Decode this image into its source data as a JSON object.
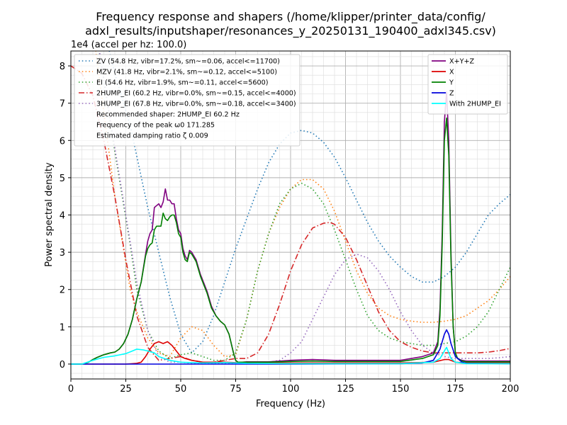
{
  "chart_data": {
    "type": "line",
    "title_line1": "Frequency response and shapers (/home/klipper/printer_data/config/",
    "title_line2": "adxl_results/inputshaper/resonances_y_20250131_190400_adxl345.csv)",
    "xlabel": "Frequency (Hz)",
    "ylabel": "Power spectral density",
    "y_offset_label": "1e4 (accel per hz: 100.0)",
    "xlim": [
      0,
      200
    ],
    "ylim": [
      -0.4,
      8.4
    ],
    "x_ticks": [
      0,
      25,
      50,
      75,
      100,
      125,
      150,
      175,
      200
    ],
    "y_ticks": [
      0,
      1,
      2,
      3,
      4,
      5,
      6,
      7,
      8
    ],
    "grid": true,
    "series": [
      {
        "name": "X+Y+Z",
        "color": "#800080",
        "x": [
          0,
          5,
          8,
          10,
          12,
          15,
          18,
          20,
          22,
          24,
          26,
          28,
          30,
          32,
          34,
          35,
          36,
          37,
          38,
          39,
          40,
          41,
          42,
          43,
          44,
          45,
          46,
          47,
          48,
          49,
          50,
          51,
          52,
          53,
          54,
          55,
          56,
          57,
          58,
          59,
          60,
          62,
          64,
          66,
          68,
          70,
          72,
          74,
          75,
          76,
          77,
          78,
          80,
          90,
          100,
          110,
          120,
          130,
          140,
          150,
          160,
          165,
          167,
          168,
          169,
          170,
          171,
          172,
          173,
          174,
          175,
          176,
          178,
          180,
          190,
          200
        ],
        "y": [
          0,
          0,
          0.05,
          0.12,
          0.18,
          0.25,
          0.3,
          0.32,
          0.4,
          0.55,
          0.8,
          1.2,
          1.75,
          2.2,
          2.95,
          3.3,
          3.5,
          3.6,
          4.2,
          4.25,
          4.3,
          4.2,
          4.35,
          4.7,
          4.4,
          4.4,
          4.3,
          4.3,
          3.9,
          3.6,
          3.5,
          3.1,
          2.9,
          2.8,
          3.05,
          3.0,
          2.9,
          2.8,
          2.6,
          2.4,
          2.25,
          1.95,
          1.55,
          1.3,
          1.15,
          1.05,
          0.8,
          0.3,
          0.1,
          0.05,
          0.05,
          0.05,
          0.06,
          0.06,
          0.1,
          0.12,
          0.1,
          0.1,
          0.1,
          0.1,
          0.2,
          0.3,
          0.6,
          1.5,
          3.5,
          6.5,
          7.3,
          6.0,
          3.0,
          1.0,
          0.3,
          0.15,
          0.1,
          0.08,
          0.08,
          0.08
        ]
      },
      {
        "name": "X",
        "color": "#dd0000",
        "x": [
          0,
          25,
          28,
          30,
          32,
          34,
          36,
          38,
          40,
          42,
          44,
          46,
          48,
          50,
          52,
          55,
          60,
          65,
          70,
          75,
          80,
          100,
          150,
          165,
          170,
          172,
          175,
          180,
          200
        ],
        "y": [
          0,
          0,
          0.01,
          0.02,
          0.05,
          0.2,
          0.4,
          0.55,
          0.6,
          0.55,
          0.6,
          0.5,
          0.35,
          0.2,
          0.15,
          0.1,
          0.05,
          0.05,
          0.05,
          0.04,
          0.03,
          0.03,
          0.03,
          0.05,
          0.12,
          0.12,
          0.05,
          0.03,
          0.03
        ]
      },
      {
        "name": "Y",
        "color": "#008000",
        "x": [
          0,
          5,
          8,
          10,
          12,
          15,
          18,
          20,
          22,
          24,
          26,
          28,
          30,
          32,
          34,
          35,
          36,
          37,
          38,
          39,
          40,
          41,
          42,
          43,
          44,
          45,
          46,
          47,
          48,
          49,
          50,
          51,
          52,
          53,
          54,
          55,
          56,
          57,
          58,
          59,
          60,
          62,
          64,
          66,
          68,
          70,
          72,
          74,
          75,
          76,
          77,
          78,
          80,
          90,
          100,
          110,
          120,
          130,
          140,
          150,
          160,
          165,
          167,
          168,
          169,
          170,
          171,
          172,
          173,
          174,
          175,
          176,
          178,
          180,
          190,
          200
        ],
        "y": [
          0,
          0,
          0.05,
          0.12,
          0.18,
          0.25,
          0.3,
          0.32,
          0.4,
          0.55,
          0.8,
          1.2,
          1.75,
          2.2,
          2.9,
          3.1,
          3.2,
          3.25,
          3.6,
          3.7,
          3.7,
          3.7,
          4.05,
          3.9,
          3.85,
          3.95,
          4.0,
          4.0,
          3.8,
          3.5,
          3.4,
          3.0,
          2.8,
          2.75,
          3.0,
          2.95,
          2.85,
          2.75,
          2.55,
          2.35,
          2.2,
          1.9,
          1.5,
          1.3,
          1.15,
          1.05,
          0.8,
          0.3,
          0.1,
          0.05,
          0.05,
          0.05,
          0.05,
          0.05,
          0.07,
          0.08,
          0.07,
          0.07,
          0.07,
          0.07,
          0.15,
          0.25,
          0.5,
          1.3,
          3.2,
          6.0,
          6.6,
          5.6,
          2.8,
          1.0,
          0.3,
          0.15,
          0.08,
          0.06,
          0.06,
          0.06
        ]
      },
      {
        "name": "Z",
        "color": "#0000dd",
        "x": [
          0,
          100,
          150,
          160,
          165,
          168,
          170,
          171,
          172,
          173,
          175,
          178,
          180,
          200
        ],
        "y": [
          0,
          0,
          0.01,
          0.03,
          0.1,
          0.4,
          0.8,
          0.92,
          0.8,
          0.55,
          0.2,
          0.05,
          0.02,
          0.01
        ]
      },
      {
        "name": "With 2HUMP_EI",
        "color": "#00ffff",
        "x": [
          0,
          5,
          10,
          15,
          20,
          25,
          28,
          30,
          33,
          35,
          38,
          40,
          45,
          50,
          55,
          60,
          70,
          80,
          100,
          150,
          165,
          168,
          170,
          171,
          172,
          173,
          175,
          180,
          200
        ],
        "y": [
          0,
          0,
          0.1,
          0.18,
          0.22,
          0.28,
          0.35,
          0.4,
          0.38,
          0.35,
          0.3,
          0.2,
          0.1,
          0.05,
          0.04,
          0.03,
          0.04,
          0.02,
          0.01,
          0.01,
          0.05,
          0.15,
          0.35,
          0.45,
          0.3,
          0.15,
          0.05,
          0.01,
          0.01
        ]
      }
    ],
    "shapers": [
      {
        "name": "ZV (54.8 Hz, vibr=17.2%, sm~=0.06, accel<=11700)",
        "color": "#1f77b4",
        "dash": "dotted",
        "x": [
          0,
          10,
          20,
          27,
          35,
          40,
          45,
          50,
          55,
          60,
          65,
          70,
          75,
          80,
          85,
          90,
          95,
          100,
          105,
          110,
          115,
          120,
          125,
          130,
          135,
          140,
          145,
          150,
          155,
          160,
          165,
          170,
          175,
          180,
          185,
          190,
          195,
          200
        ],
        "y": [
          12,
          10.2,
          7.8,
          6.4,
          4.2,
          3.0,
          1.8,
          0.8,
          0.3,
          0.6,
          1.3,
          2.2,
          3.1,
          3.9,
          4.7,
          5.4,
          5.9,
          6.2,
          6.27,
          6.2,
          5.95,
          5.55,
          5.0,
          4.4,
          3.8,
          3.3,
          2.9,
          2.6,
          2.35,
          2.2,
          2.2,
          2.35,
          2.6,
          3.0,
          3.5,
          4.0,
          4.3,
          4.55
        ]
      },
      {
        "name": "MZV (41.8 Hz, vibr=2.1%, sm~=0.12, accel<=5100)",
        "color": "#ff7f0e",
        "dash": "dotted",
        "x": [
          0,
          10,
          20,
          27,
          30,
          35,
          40,
          45,
          50,
          55,
          60,
          65,
          70,
          75,
          80,
          85,
          90,
          95,
          100,
          105,
          110,
          115,
          120,
          125,
          130,
          135,
          140,
          145,
          150,
          155,
          160,
          165,
          170,
          175,
          180,
          185,
          190,
          195,
          200
        ],
        "y": [
          12,
          9.0,
          4.5,
          2.0,
          1.4,
          0.7,
          0.3,
          0.2,
          0.7,
          1.0,
          0.9,
          0.5,
          0.2,
          0.25,
          1.2,
          2.5,
          3.5,
          4.2,
          4.7,
          4.95,
          4.95,
          4.7,
          4.1,
          3.3,
          2.5,
          1.9,
          1.5,
          1.3,
          1.2,
          1.15,
          1.12,
          1.12,
          1.15,
          1.2,
          1.3,
          1.5,
          1.7,
          2.0,
          2.35
        ]
      },
      {
        "name": "EI (54.6 Hz, vibr=1.9%, sm~=0.11, accel<=5600)",
        "color": "#2ca02c",
        "dash": "dotted",
        "x": [
          0,
          10,
          20,
          27,
          30,
          35,
          40,
          45,
          50,
          55,
          60,
          65,
          70,
          75,
          80,
          85,
          90,
          95,
          100,
          105,
          110,
          115,
          120,
          125,
          130,
          135,
          140,
          145,
          150,
          155,
          160,
          165,
          170,
          175,
          180,
          185,
          190,
          195,
          200
        ],
        "y": [
          12,
          9.5,
          5.7,
          3.2,
          2.0,
          0.9,
          0.35,
          0.15,
          0.25,
          0.3,
          0.2,
          0.1,
          0.1,
          0.3,
          1.2,
          2.5,
          3.5,
          4.3,
          4.7,
          4.85,
          4.7,
          4.3,
          3.6,
          2.8,
          2.0,
          1.3,
          0.9,
          0.7,
          0.6,
          0.55,
          0.5,
          0.5,
          0.55,
          0.6,
          0.75,
          1.0,
          1.4,
          2.0,
          2.6
        ]
      },
      {
        "name": "2HUMP_EI (60.2 Hz, vibr=0.0%, sm~=0.15, accel<=4000)",
        "color": "#d62728",
        "dash": "dashdot",
        "x": [
          0,
          5,
          10,
          15,
          20,
          25,
          30,
          35,
          40,
          45,
          50,
          55,
          60,
          65,
          70,
          75,
          80,
          85,
          90,
          95,
          100,
          105,
          110,
          115,
          118,
          120,
          125,
          130,
          135,
          140,
          145,
          150,
          155,
          160,
          165,
          170,
          175,
          180,
          185,
          190,
          195,
          200
        ],
        "y": [
          8.0,
          7.8,
          7.2,
          6.0,
          4.5,
          2.8,
          1.3,
          0.45,
          0.1,
          0.15,
          0.2,
          0.1,
          0.05,
          0.05,
          0.1,
          0.15,
          0.15,
          0.3,
          0.8,
          1.6,
          2.5,
          3.2,
          3.65,
          3.78,
          3.8,
          3.75,
          3.4,
          2.8,
          2.1,
          1.4,
          0.9,
          0.6,
          0.45,
          0.35,
          0.3,
          0.3,
          0.3,
          0.3,
          0.3,
          0.32,
          0.36,
          0.42
        ]
      },
      {
        "name": "3HUMP_EI (67.8 Hz, vibr=0.0%, sm~=0.18, accel<=3400)",
        "color": "#9467bd",
        "dash": "dotted",
        "x": [
          0,
          10,
          20,
          25,
          30,
          35,
          40,
          45,
          50,
          55,
          60,
          65,
          70,
          75,
          80,
          85,
          90,
          95,
          100,
          105,
          110,
          115,
          120,
          125,
          130,
          135,
          140,
          145,
          150,
          155,
          160,
          165,
          170,
          175,
          180,
          185,
          190,
          195,
          200
        ],
        "y": [
          12,
          9.5,
          5.8,
          4.0,
          2.2,
          0.9,
          0.2,
          0.05,
          0.05,
          0.02,
          0.02,
          0.02,
          0.02,
          0.02,
          0.02,
          0.03,
          0.05,
          0.1,
          0.3,
          0.6,
          1.2,
          1.8,
          2.4,
          2.8,
          2.95,
          2.85,
          2.5,
          2.0,
          1.4,
          0.9,
          0.5,
          0.3,
          0.2,
          0.15,
          0.15,
          0.15,
          0.15,
          0.17,
          0.2
        ]
      }
    ],
    "legend_left_notes": [
      "Recommended shaper: 2HUMP_EI 60.2 Hz",
      "Frequency of the peak ω0 171.285",
      "Estimated damping ratio ζ 0.009"
    ],
    "legend_left_position": "upper-left",
    "legend_right_position": "upper-right"
  }
}
